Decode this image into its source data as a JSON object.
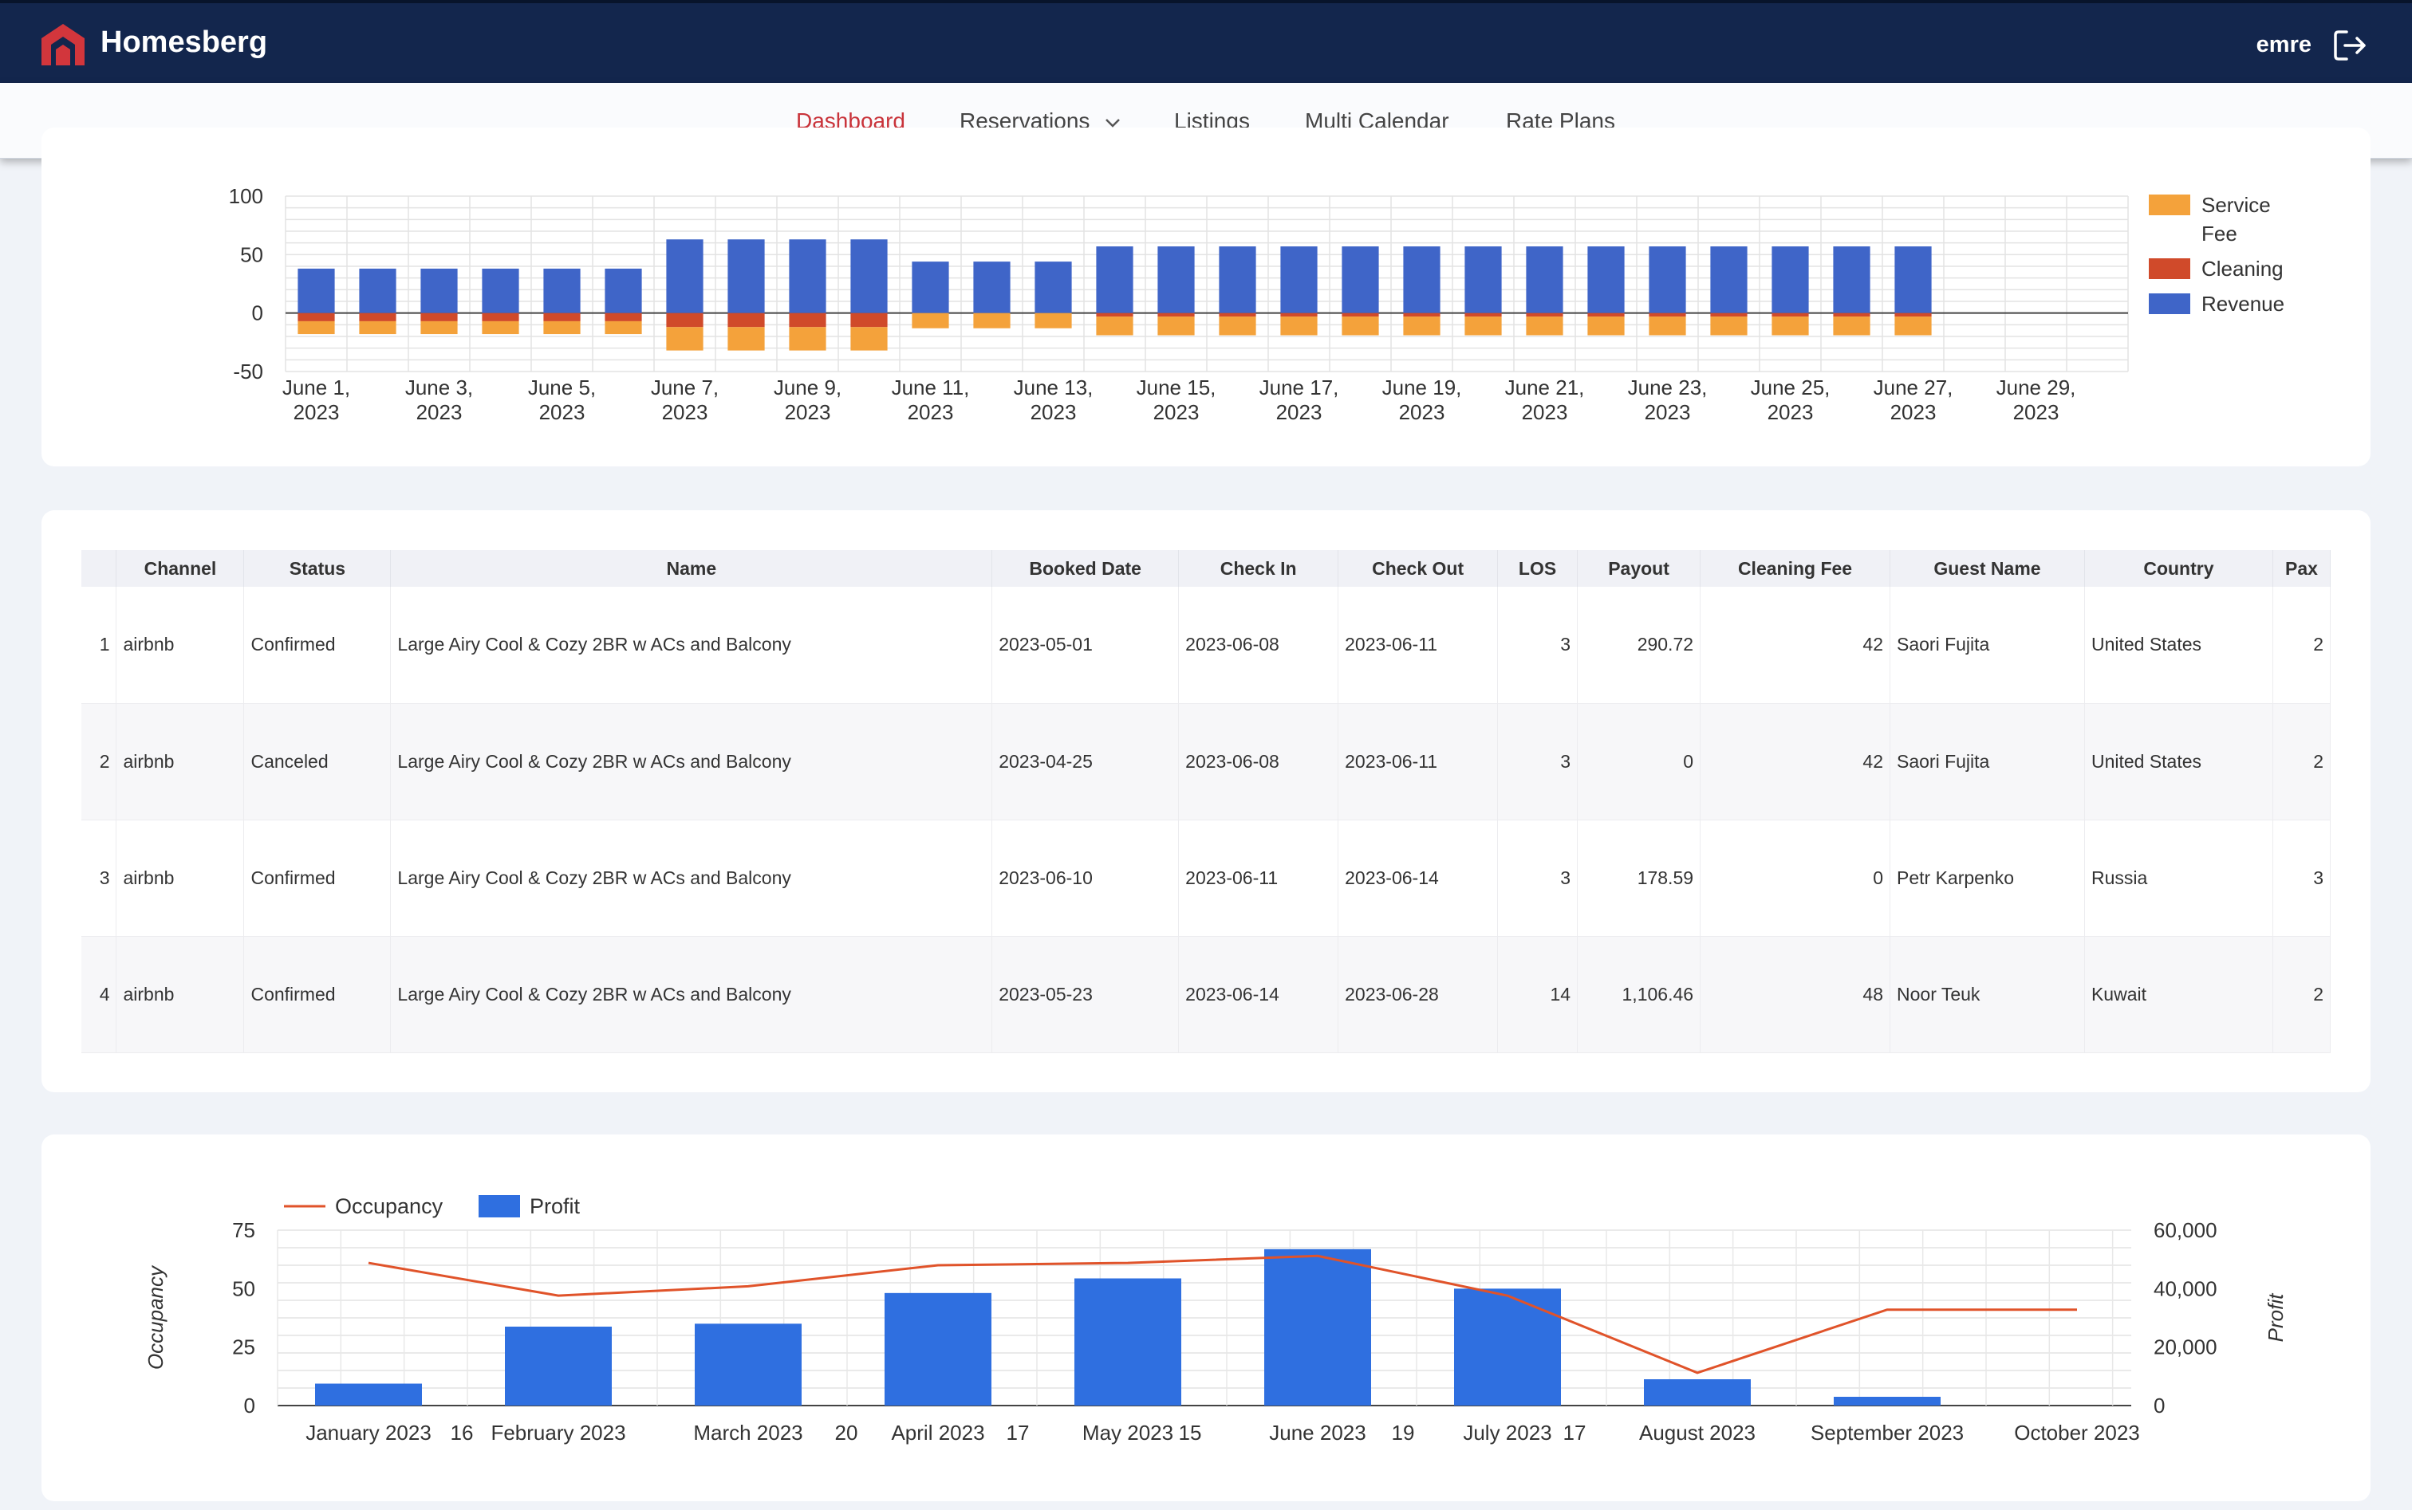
{
  "header": {
    "brand": "Homesberg",
    "user": "emre",
    "logo_icon": "homesberg-logo-icon",
    "logout_icon": "logout-icon"
  },
  "nav": {
    "items": [
      {
        "label": "Dashboard",
        "active": true
      },
      {
        "label": "Reservations",
        "dropdown": true
      },
      {
        "label": "Listings"
      },
      {
        "label": "Multi Calendar"
      },
      {
        "label": "Rate Plans"
      }
    ]
  },
  "chart_data": [
    {
      "type": "bar",
      "stacked": true,
      "title": "",
      "categories": [
        "June 1, 2023",
        "June 2, 2023",
        "June 3, 2023",
        "June 4, 2023",
        "June 5, 2023",
        "June 6, 2023",
        "June 7, 2023",
        "June 8, 2023",
        "June 9, 2023",
        "June 10, 2023",
        "June 11, 2023",
        "June 12, 2023",
        "June 13, 2023",
        "June 14, 2023",
        "June 15, 2023",
        "June 16, 2023",
        "June 17, 2023",
        "June 18, 2023",
        "June 19, 2023",
        "June 20, 2023",
        "June 21, 2023",
        "June 22, 2023",
        "June 23, 2023",
        "June 24, 2023",
        "June 25, 2023",
        "June 26, 2023",
        "June 27, 2023",
        "June 28, 2023",
        "June 29, 2023",
        "June 30, 2023"
      ],
      "tick_labels": [
        [
          "June 1,",
          "2023"
        ],
        [
          "June 3,",
          "2023"
        ],
        [
          "June 5,",
          "2023"
        ],
        [
          "June 7,",
          "2023"
        ],
        [
          "June 9,",
          "2023"
        ],
        [
          "June 11,",
          "2023"
        ],
        [
          "June 13,",
          "2023"
        ],
        [
          "June 15,",
          "2023"
        ],
        [
          "June 17,",
          "2023"
        ],
        [
          "June 19,",
          "2023"
        ],
        [
          "June 21,",
          "2023"
        ],
        [
          "June 23,",
          "2023"
        ],
        [
          "June 25,",
          "2023"
        ],
        [
          "June 27,",
          "2023"
        ],
        [
          "June 29,",
          "2023"
        ]
      ],
      "series": [
        {
          "name": "Revenue",
          "color": "#3f65c8",
          "values": [
            38,
            38,
            38,
            38,
            38,
            38,
            63,
            63,
            63,
            63,
            44,
            44,
            44,
            57,
            57,
            57,
            57,
            57,
            57,
            57,
            57,
            57,
            57,
            57,
            57,
            57,
            57,
            0,
            0,
            0
          ]
        },
        {
          "name": "Cleaning",
          "color": "#d04a2a",
          "values": [
            -7,
            -7,
            -7,
            -7,
            -7,
            -7,
            -12,
            -12,
            -12,
            -12,
            0,
            0,
            0,
            -3,
            -3,
            -3,
            -3,
            -3,
            -3,
            -3,
            -3,
            -3,
            -3,
            -3,
            -3,
            -3,
            -3,
            0,
            0,
            0
          ]
        },
        {
          "name": "Service\nFee",
          "color": "#f4a23b",
          "values": [
            -11,
            -11,
            -11,
            -11,
            -11,
            -11,
            -20,
            -20,
            -20,
            -20,
            -13,
            -13,
            -13,
            -16,
            -16,
            -16,
            -16,
            -16,
            -16,
            -16,
            -16,
            -16,
            -16,
            -16,
            -16,
            -16,
            -16,
            0,
            0,
            0
          ]
        }
      ],
      "legend": [
        {
          "label": "Service",
          "label2": "Fee",
          "color": "#f4a23b"
        },
        {
          "label": "Cleaning",
          "color": "#d04a2a"
        },
        {
          "label": "Revenue",
          "color": "#3f65c8"
        }
      ],
      "ylim": [
        -50,
        100
      ],
      "yticks": [
        100,
        50,
        0,
        -50
      ],
      "grid": true,
      "legend_position": "right"
    },
    {
      "type": "bar+line",
      "title": "",
      "categories": [
        "January 2023",
        "February 2023",
        "March 2023",
        "April 2023",
        "May 2023",
        "June 2023",
        "July 2023",
        "August 2023",
        "September 2023",
        "October 2023"
      ],
      "series": [
        {
          "name": "Occupancy",
          "type": "line",
          "axis": "left",
          "color": "#e0532a",
          "values": [
            61,
            47,
            51,
            60,
            61,
            64,
            47,
            14,
            41,
            41
          ]
        },
        {
          "name": "Profit",
          "type": "bar",
          "axis": "right",
          "color": "#2f6fe0",
          "values": [
            7500,
            27000,
            28000,
            38500,
            43500,
            53500,
            40000,
            9000,
            3000,
            0
          ]
        }
      ],
      "between_labels": [
        "16",
        "20",
        "17",
        "15",
        "19",
        "17"
      ],
      "ylabel": "Occupancy",
      "y2label": "Profit",
      "ylim": [
        0,
        75
      ],
      "y2lim": [
        0,
        60000
      ],
      "yticks": [
        "75",
        "50",
        "25",
        "0"
      ],
      "y2ticks": [
        "60,000",
        "40,000",
        "20,000",
        "0"
      ],
      "grid": true,
      "legend_position": "top-left"
    }
  ],
  "table": {
    "columns": [
      "",
      "Channel",
      "Status",
      "Name",
      "Booked Date",
      "Check In",
      "Check Out",
      "LOS",
      "Payout",
      "Cleaning Fee",
      "Guest Name",
      "Country",
      "Pax"
    ],
    "rows": [
      [
        "1",
        "airbnb",
        "Confirmed",
        "Large Airy Cool & Cozy 2BR w ACs and Balcony",
        "2023-05-01",
        "2023-06-08",
        "2023-06-11",
        "3",
        "290.72",
        "42",
        "Saori Fujita",
        "United States",
        "2"
      ],
      [
        "2",
        "airbnb",
        "Canceled",
        "Large Airy Cool & Cozy 2BR w ACs and Balcony",
        "2023-04-25",
        "2023-06-08",
        "2023-06-11",
        "3",
        "0",
        "42",
        "Saori Fujita",
        "United States",
        "2"
      ],
      [
        "3",
        "airbnb",
        "Confirmed",
        "Large Airy Cool & Cozy 2BR w ACs and Balcony",
        "2023-06-10",
        "2023-06-11",
        "2023-06-14",
        "3",
        "178.59",
        "0",
        "Petr Karpenko",
        "Russia",
        "3"
      ],
      [
        "4",
        "airbnb",
        "Confirmed",
        "Large Airy Cool & Cozy 2BR w ACs and Balcony",
        "2023-05-23",
        "2023-06-14",
        "2023-06-28",
        "14",
        "1,106.46",
        "48",
        "Noor Teuk",
        "Kuwait",
        "2"
      ]
    ]
  }
}
